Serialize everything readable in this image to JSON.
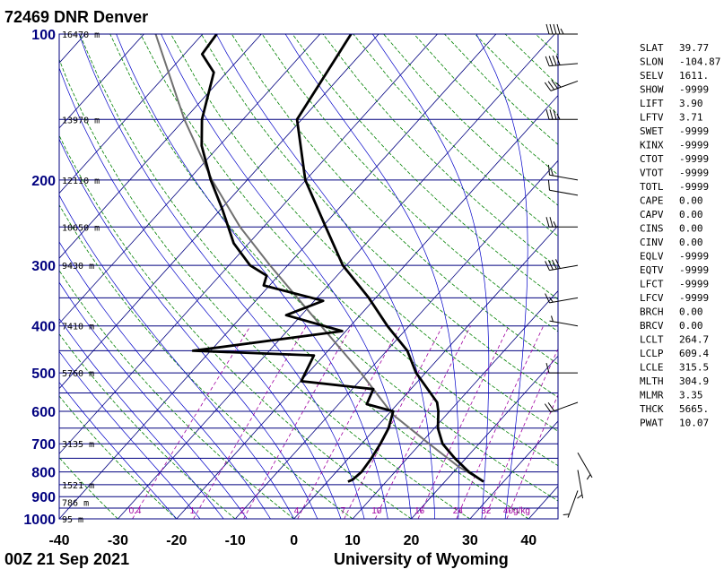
{
  "header": {
    "title": "72469 DNR Denver",
    "time_label": "00Z 21 Sep 2021",
    "credit": "University of Wyoming"
  },
  "colors": {
    "isobar": "#00007f",
    "isotherm": "#00007f",
    "dry_adiabat": "#008000",
    "moist_adiabat": "#0000c8",
    "mixing_ratio": "#a000a0",
    "temperature": "#000000",
    "dewpoint": "#000000",
    "parcel": "#707070"
  },
  "chart_data": {
    "type": "skew-t",
    "ylabel": "",
    "xlabel": "",
    "y_scale": "log",
    "ylim": [
      1000,
      100
    ],
    "xlim": [
      -40,
      45
    ],
    "pressure_ticks": [
      100,
      200,
      300,
      400,
      500,
      600,
      700,
      800,
      900,
      1000
    ],
    "temperature_ticks": [
      -40,
      -30,
      -20,
      -10,
      0,
      10,
      20,
      30,
      40
    ],
    "height_labels": [
      {
        "p": 100,
        "text": "16470 m"
      },
      {
        "p": 150,
        "text": "13970 m"
      },
      {
        "p": 200,
        "text": "12110 m"
      },
      {
        "p": 250,
        "text": "10650 m"
      },
      {
        "p": 300,
        "text": "9430 m"
      },
      {
        "p": 400,
        "text": "7410 m"
      },
      {
        "p": 500,
        "text": "5760 m"
      },
      {
        "p": 700,
        "text": "3135 m"
      },
      {
        "p": 850,
        "text": "1521 m"
      },
      {
        "p": 925,
        "text": "786 m"
      },
      {
        "p": 1000,
        "text": "95 m"
      }
    ],
    "mixing_ratio_labels": [
      {
        "w": 0.4,
        "text": "0.4"
      },
      {
        "w": 1,
        "text": "1"
      },
      {
        "w": 2,
        "text": "2"
      },
      {
        "w": 4,
        "text": "4"
      },
      {
        "w": 7,
        "text": "7"
      },
      {
        "w": 10,
        "text": "10"
      },
      {
        "w": 16,
        "text": "16"
      },
      {
        "w": 24,
        "text": "24"
      },
      {
        "w": 32,
        "text": "32"
      },
      {
        "w": 40,
        "text": "40"
      },
      {
        "w": null,
        "text": "g/kg"
      }
    ],
    "temperature_profile": [
      {
        "p": 838,
        "t": 26.6
      },
      {
        "p": 800,
        "t": 22.6
      },
      {
        "p": 750,
        "t": 18.1
      },
      {
        "p": 700,
        "t": 13.8
      },
      {
        "p": 650,
        "t": 10.6
      },
      {
        "p": 600,
        "t": 8.1
      },
      {
        "p": 575,
        "t": 6.5
      },
      {
        "p": 500,
        "t": -1.6
      },
      {
        "p": 450,
        "t": -6.5
      },
      {
        "p": 400,
        "t": -13.7
      },
      {
        "p": 350,
        "t": -21.2
      },
      {
        "p": 300,
        "t": -30.6
      },
      {
        "p": 250,
        "t": -39.4
      },
      {
        "p": 200,
        "t": -50.1
      },
      {
        "p": 150,
        "t": -60.8
      },
      {
        "p": 100,
        "t": -64.7
      }
    ],
    "dewpoint_profile": [
      {
        "p": 838,
        "t": 3.5
      },
      {
        "p": 830,
        "t": 4.0
      },
      {
        "p": 800,
        "t": 4.3
      },
      {
        "p": 750,
        "t": 3.9
      },
      {
        "p": 700,
        "t": 3.2
      },
      {
        "p": 650,
        "t": 2.2
      },
      {
        "p": 600,
        "t": 0.4
      },
      {
        "p": 580,
        "t": -5.2
      },
      {
        "p": 540,
        "t": -6.4
      },
      {
        "p": 520,
        "t": -19.9
      },
      {
        "p": 460,
        "t": -21.7
      },
      {
        "p": 450,
        "t": -43.0
      },
      {
        "p": 410,
        "t": -20.6
      },
      {
        "p": 380,
        "t": -32.6
      },
      {
        "p": 355,
        "t": -28.5
      },
      {
        "p": 330,
        "t": -41.0
      },
      {
        "p": 315,
        "t": -42.0
      },
      {
        "p": 300,
        "t": -46.4
      },
      {
        "p": 270,
        "t": -52.6
      },
      {
        "p": 230,
        "t": -59.7
      },
      {
        "p": 200,
        "t": -66.2
      },
      {
        "p": 170,
        "t": -73.0
      },
      {
        "p": 150,
        "t": -77.0
      },
      {
        "p": 120,
        "t": -82.2
      },
      {
        "p": 110,
        "t": -87.0
      },
      {
        "p": 100,
        "t": -87.6
      }
    ],
    "parcel_profile": [
      {
        "p": 838,
        "t": 26.6
      },
      {
        "p": 780,
        "t": 20.0
      },
      {
        "p": 700,
        "t": 11.5
      },
      {
        "p": 650,
        "t": 5.8
      },
      {
        "p": 609,
        "t": 0.8
      },
      {
        "p": 500,
        "t": -11.0
      },
      {
        "p": 400,
        "t": -25.0
      },
      {
        "p": 300,
        "t": -43.0
      },
      {
        "p": 250,
        "t": -54.0
      },
      {
        "p": 200,
        "t": -66.0
      },
      {
        "p": 150,
        "t": -80.0
      },
      {
        "p": 100,
        "t": -98.0
      }
    ],
    "wind_barbs": [
      {
        "p": 100,
        "dir": 270,
        "spd": 45
      },
      {
        "p": 115,
        "dir": 265,
        "spd": 40
      },
      {
        "p": 125,
        "dir": 250,
        "spd": 35
      },
      {
        "p": 150,
        "dir": 270,
        "spd": 35
      },
      {
        "p": 200,
        "dir": 280,
        "spd": 15
      },
      {
        "p": 215,
        "dir": 280,
        "spd": 10
      },
      {
        "p": 250,
        "dir": 270,
        "spd": 25
      },
      {
        "p": 300,
        "dir": 260,
        "spd": 40
      },
      {
        "p": 350,
        "dir": 260,
        "spd": 15
      },
      {
        "p": 400,
        "dir": 280,
        "spd": 5
      },
      {
        "p": 500,
        "dir": 270,
        "spd": 10
      },
      {
        "p": 575,
        "dir": 250,
        "spd": 20
      },
      {
        "p": 700,
        "dir": 150,
        "spd": 5
      },
      {
        "p": 760,
        "dir": 170,
        "spd": 5
      },
      {
        "p": 838,
        "dir": 200,
        "spd": 5
      }
    ]
  },
  "indices": [
    {
      "name": "SLAT",
      "value": "39.77"
    },
    {
      "name": "SLON",
      "value": "-104.87"
    },
    {
      "name": "SELV",
      "value": "1611."
    },
    {
      "name": "SHOW",
      "value": "-9999"
    },
    {
      "name": "LIFT",
      "value": "3.90"
    },
    {
      "name": "LFTV",
      "value": "3.71"
    },
    {
      "name": "SWET",
      "value": "-9999"
    },
    {
      "name": "KINX",
      "value": "-9999"
    },
    {
      "name": "CTOT",
      "value": "-9999"
    },
    {
      "name": "VTOT",
      "value": "-9999"
    },
    {
      "name": "TOTL",
      "value": "-9999"
    },
    {
      "name": "CAPE",
      "value": "0.00"
    },
    {
      "name": "CAPV",
      "value": "0.00"
    },
    {
      "name": "CINS",
      "value": "0.00"
    },
    {
      "name": "CINV",
      "value": "0.00"
    },
    {
      "name": "EQLV",
      "value": "-9999"
    },
    {
      "name": "EQTV",
      "value": "-9999"
    },
    {
      "name": "LFCT",
      "value": "-9999"
    },
    {
      "name": "LFCV",
      "value": "-9999"
    },
    {
      "name": "BRCH",
      "value": "0.00"
    },
    {
      "name": "BRCV",
      "value": "0.00"
    },
    {
      "name": "LCLT",
      "value": "264.7"
    },
    {
      "name": "LCLP",
      "value": "609.4"
    },
    {
      "name": "LCLE",
      "value": "315.5"
    },
    {
      "name": "MLTH",
      "value": "304.9"
    },
    {
      "name": "MLMR",
      "value": "3.35"
    },
    {
      "name": "THCK",
      "value": "5665."
    },
    {
      "name": "PWAT",
      "value": "10.07"
    }
  ]
}
